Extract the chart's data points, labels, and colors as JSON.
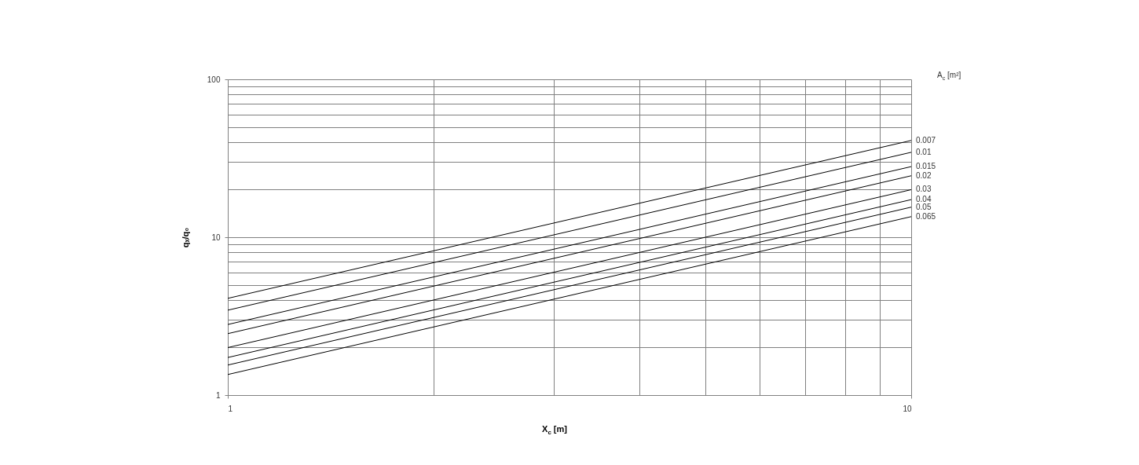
{
  "chart_data": {
    "type": "line",
    "xlabel": "X$_{c}$ [m]",
    "ylabel": "qₓ/q₀",
    "legend_title": "A$_{c}$ [m²]",
    "log": "xy",
    "grid": true,
    "xlim": [
      1,
      10
    ],
    "ylim": [
      1,
      100
    ],
    "xticks": [
      1,
      {
        "value": 2,
        "label": null
      },
      {
        "value": 3,
        "label": null
      },
      {
        "value": 4,
        "label": null
      },
      {
        "value": 5,
        "label": null
      },
      {
        "value": 6,
        "label": null
      },
      {
        "value": 7,
        "label": null
      },
      {
        "value": 8,
        "label": null
      },
      {
        "value": 9,
        "label": null
      },
      10
    ],
    "yticks": [
      1,
      {
        "value": 2,
        "label": null
      },
      {
        "value": 3,
        "label": null
      },
      {
        "value": 4,
        "label": null
      },
      {
        "value": 5,
        "label": null
      },
      {
        "value": 6,
        "label": null
      },
      {
        "value": 7,
        "label": null
      },
      {
        "value": 8,
        "label": null
      },
      {
        "value": 9,
        "label": null
      },
      10,
      {
        "value": 20,
        "label": null
      },
      {
        "value": 30,
        "label": null
      },
      {
        "value": 40,
        "label": null
      },
      {
        "value": 50,
        "label": null
      },
      {
        "value": 60,
        "label": null
      },
      {
        "value": 70,
        "label": null
      },
      {
        "value": 80,
        "label": null
      },
      {
        "value": 90,
        "label": null
      },
      100
    ],
    "x": [
      1,
      10
    ],
    "series": [
      {
        "name": "0.007",
        "color": "#000000",
        "values": [
          4.1,
          41
        ]
      },
      {
        "name": "0.01",
        "color": "#000000",
        "values": [
          3.45,
          34.5
        ]
      },
      {
        "name": "0.015",
        "color": "#000000",
        "values": [
          2.8,
          28
        ]
      },
      {
        "name": "0.02",
        "color": "#000000",
        "values": [
          2.45,
          24.5
        ]
      },
      {
        "name": "0.03",
        "color": "#000000",
        "values": [
          2.0,
          20
        ]
      },
      {
        "name": "0.04",
        "color": "#000000",
        "values": [
          1.73,
          17.3
        ]
      },
      {
        "name": "0.05",
        "color": "#000000",
        "values": [
          1.55,
          15.5
        ]
      },
      {
        "name": "0.065",
        "color": "#000000",
        "values": [
          1.35,
          13.5
        ]
      }
    ]
  }
}
